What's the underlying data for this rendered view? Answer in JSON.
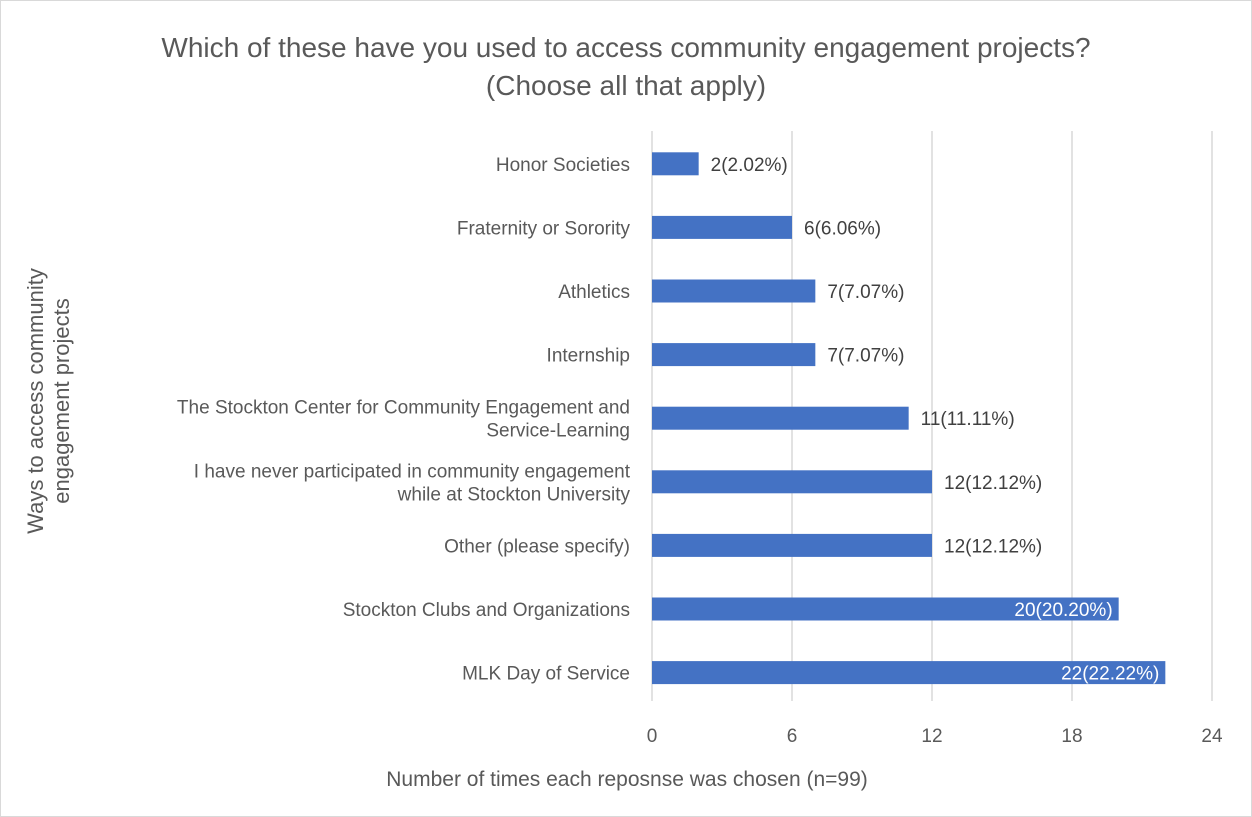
{
  "chart_data": {
    "type": "bar",
    "orientation": "horizontal",
    "title": [
      "Which of these have you used to access community engagement projects?",
      "(Choose all that apply)"
    ],
    "ylabel": [
      "Ways to access community",
      "engagement projects"
    ],
    "xlabel": "Number of times each reposnse was chosen (n=99)",
    "categories": [
      [
        "Honor Societies"
      ],
      [
        "Fraternity or Sorority"
      ],
      [
        "Athletics"
      ],
      [
        "Internship"
      ],
      [
        "The Stockton Center for Community Engagement and",
        "Service-Learning"
      ],
      [
        "I have never participated in community engagement",
        "while at Stockton University"
      ],
      [
        "Other (please specify)"
      ],
      [
        "Stockton Clubs and Organizations"
      ],
      [
        "MLK Day of Service"
      ]
    ],
    "values": [
      2,
      6,
      7,
      7,
      11,
      12,
      12,
      20,
      22
    ],
    "data_labels": [
      "2(2.02%)",
      "6(6.06%)",
      "7(7.07%)",
      "7(7.07%)",
      "11(11.11%)",
      "12(12.12%)",
      "12(12.12%)",
      "20(20.20%)",
      "22(22.22%)"
    ],
    "xlim": [
      0,
      24
    ],
    "xticks": [
      0,
      6,
      12,
      18,
      24
    ],
    "grid": true,
    "bar_color": "#4472C4",
    "gridline_color": "#d9d9d9"
  }
}
